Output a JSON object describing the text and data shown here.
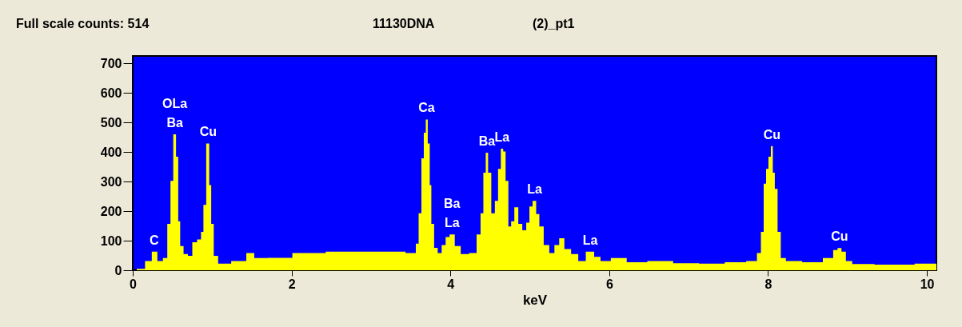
{
  "chart_data": {
    "type": "area",
    "title": "Full scale counts: 514",
    "xlabel": "keV",
    "x": [
      0,
      0.1,
      0.21,
      0.27,
      0.35,
      0.41,
      0.46,
      0.49,
      0.53,
      0.56,
      0.585,
      0.61,
      0.67,
      0.72,
      0.78,
      0.84,
      0.88,
      0.9,
      0.95,
      0.976,
      1.0,
      1.04,
      1.11,
      1.37,
      1.49,
      1.57,
      1.83,
      2.19,
      2.67,
      3.0,
      3.32,
      3.55,
      3.58,
      3.62,
      3.65,
      3.68,
      3.7,
      3.73,
      3.75,
      3.77,
      3.82,
      3.86,
      3.92,
      3.96,
      4.02,
      4.09,
      4.17,
      4.3,
      4.36,
      4.4,
      4.43,
      4.46,
      4.49,
      4.54,
      4.58,
      4.62,
      4.65,
      4.68,
      4.71,
      4.75,
      4.78,
      4.83,
      4.88,
      4.93,
      4.98,
      5.01,
      5.06,
      5.1,
      5.14,
      5.21,
      5.28,
      5.34,
      5.4,
      5.47,
      5.57,
      5.65,
      5.76,
      5.86,
      5.92,
      6.12,
      6.32,
      6.64,
      6.97,
      7.29,
      7.62,
      7.83,
      7.89,
      7.93,
      7.96,
      7.99,
      8.02,
      8.05,
      8.07,
      8.1,
      8.14,
      8.18,
      8.27,
      8.59,
      8.79,
      8.85,
      8.9,
      8.95,
      9.01,
      9.11,
      9.57,
      10.12
    ],
    "series": [
      {
        "color": "#ffff00",
        "values": [
          0,
          5,
          31,
          63,
          31,
          41,
          157,
          302,
          460,
          384,
          166,
          82,
          55,
          49,
          95,
          104,
          130,
          221,
          429,
          288,
          157,
          49,
          22,
          31,
          58,
          41,
          42,
          58,
          63,
          63,
          63,
          58,
          90,
          193,
          379,
          465,
          510,
          429,
          288,
          157,
          76,
          58,
          85,
          112,
          121,
          82,
          55,
          58,
          121,
          193,
          330,
          398,
          330,
          193,
          235,
          343,
          411,
          402,
          302,
          148,
          166,
          213,
          157,
          135,
          161,
          216,
          235,
          190,
          148,
          85,
          58,
          85,
          108,
          72,
          55,
          31,
          63,
          45,
          31,
          41,
          27,
          31,
          24,
          22,
          27,
          31,
          58,
          130,
          293,
          343,
          384,
          420,
          330,
          275,
          130,
          41,
          31,
          27,
          41,
          68,
          75,
          63,
          31,
          21,
          19,
          22
        ]
      }
    ],
    "xlim": [
      0,
      10.12
    ],
    "ylim": [
      0,
      725
    ],
    "xticks": [
      0,
      2,
      4,
      6,
      8,
      10
    ],
    "yticks": [
      0,
      100,
      200,
      300,
      400,
      500,
      600,
      700
    ],
    "grid": false,
    "annotations": [
      "11130DNA",
      "(2)_pt1",
      {
        "text": "C",
        "x": 0.27,
        "y": 63
      },
      {
        "text": "OLa",
        "x": 0.53,
        "y": 460
      },
      {
        "text": "Ba",
        "x": 0.53,
        "y": 460
      },
      {
        "text": "Cu",
        "x": 0.95,
        "y": 429
      },
      {
        "text": "Ca",
        "x": 3.7,
        "y": 510
      },
      {
        "text": "Ba",
        "x": 4.02,
        "y": 121
      },
      {
        "text": "La",
        "x": 4.02,
        "y": 121
      },
      {
        "text": "Ba",
        "x": 4.46,
        "y": 398
      },
      {
        "text": "La",
        "x": 4.65,
        "y": 411
      },
      {
        "text": "La",
        "x": 5.06,
        "y": 235
      },
      {
        "text": "La",
        "x": 5.76,
        "y": 63
      },
      {
        "text": "Cu",
        "x": 8.05,
        "y": 420
      },
      {
        "text": "Cu",
        "x": 8.9,
        "y": 75
      }
    ]
  }
}
